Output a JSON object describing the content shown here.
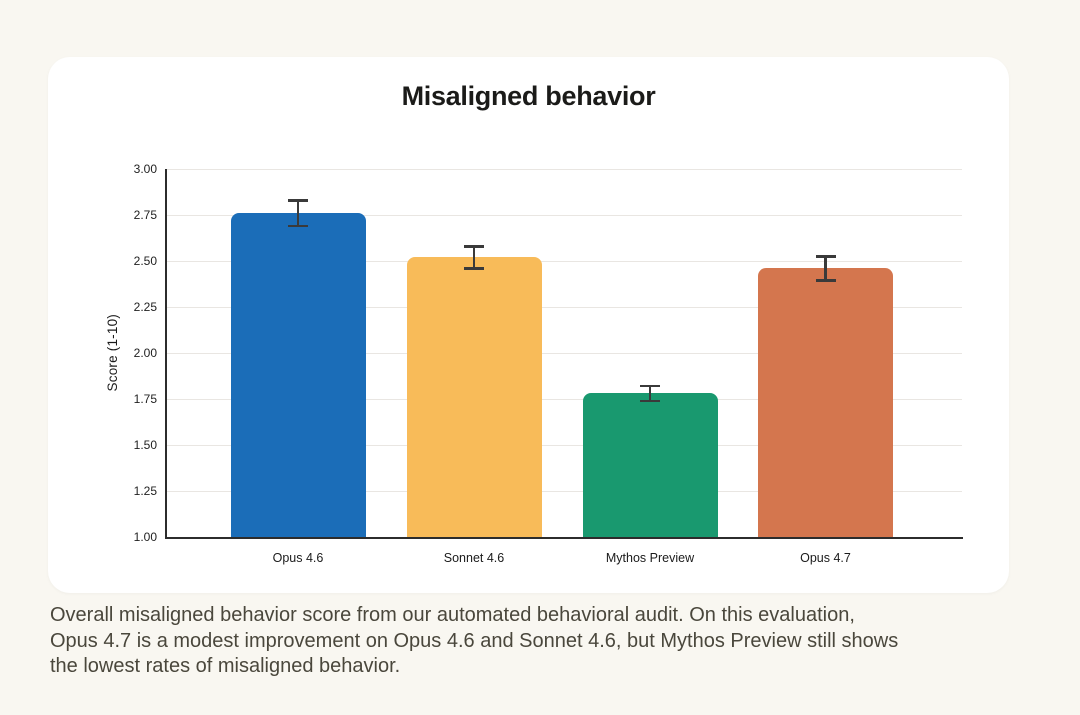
{
  "page": {
    "background_color": "#f9f7f1",
    "card_color": "#ffffff"
  },
  "chart_data": {
    "type": "bar",
    "title": "Misaligned behavior",
    "ylabel": "Score (1-10)",
    "xlabel": "",
    "categories": [
      "Opus 4.6",
      "Sonnet 4.6",
      "Mythos Preview",
      "Opus 4.7"
    ],
    "values": [
      2.76,
      2.52,
      1.78,
      2.46
    ],
    "error_bars": [
      0.07,
      0.06,
      0.04,
      0.065
    ],
    "bar_colors": [
      "#1b6db8",
      "#f8bb59",
      "#19996f",
      "#d4764e"
    ],
    "ylim": [
      1.0,
      3.0
    ],
    "yticks": [
      1.0,
      1.25,
      1.5,
      1.75,
      2.0,
      2.25,
      2.5,
      2.75,
      3.0
    ],
    "ytick_decimals": 2,
    "grid": "horizontal",
    "legend": "none",
    "error_bar_color": "#3a3a3a",
    "axis_color": "#2c2c2c",
    "gridline_color": "#e9e6e2"
  },
  "caption": {
    "lines": [
      "Overall misaligned behavior score from our automated behavioral audit. On this evaluation,",
      "Opus 4.7 is a modest improvement on Opus 4.6 and Sonnet 4.6, but Mythos Preview still shows",
      "the lowest rates of misaligned behavior."
    ]
  }
}
